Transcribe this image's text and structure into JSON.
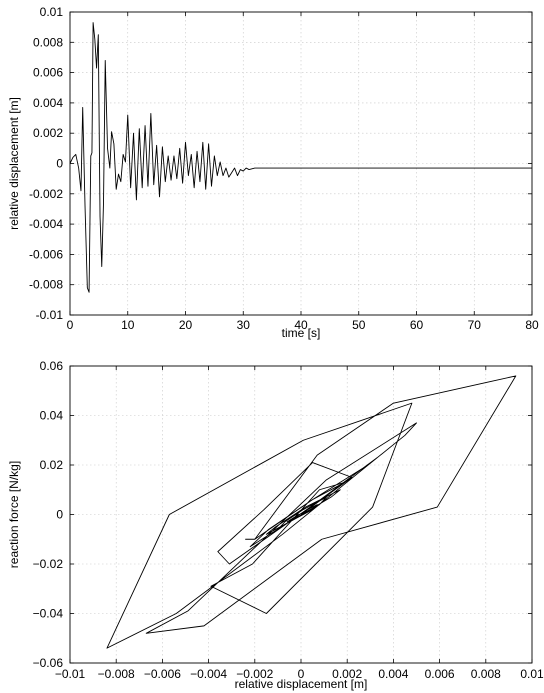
{
  "chart_data": [
    {
      "type": "line",
      "title": "",
      "xlabel": "time [s]",
      "ylabel": "relative displacement [m]",
      "xlim": [
        0,
        80
      ],
      "ylim": [
        -0.01,
        0.01
      ],
      "xticks": [
        0,
        10,
        20,
        30,
        40,
        50,
        60,
        70,
        80
      ],
      "xtick_labels": [
        "0",
        "10",
        "20",
        "30",
        "40",
        "50",
        "60",
        "70",
        "80"
      ],
      "yticks": [
        -0.01,
        -0.008,
        -0.006,
        -0.004,
        -0.002,
        0,
        0.002,
        0.004,
        0.006,
        0.008,
        0.01
      ],
      "ytick_labels": [
        "-0.01",
        "-0.008",
        "-0.006",
        "-0.004",
        "-0.002",
        "0",
        "0.002",
        "0.004",
        "0.006",
        "0.008",
        "0.01"
      ],
      "grid": true,
      "series": [
        {
          "x": [
            0,
            0.5,
            1.0,
            1.5,
            1.9,
            2.2,
            2.6,
            3.0,
            3.3,
            3.6,
            3.8,
            4.0,
            4.3,
            4.6,
            4.9,
            5.2,
            5.5,
            5.8,
            6.1,
            6.5,
            6.9,
            7.2,
            7.6,
            8.0,
            8.4,
            8.8,
            9.2,
            9.6,
            10.0,
            10.5,
            11.0,
            11.5,
            12.0,
            12.5,
            13.0,
            13.5,
            14.0,
            14.5,
            15.0,
            15.5,
            16.0,
            16.5,
            17.0,
            17.5,
            18.0,
            18.5,
            19.0,
            19.5,
            20.0,
            20.5,
            21.0,
            21.5,
            22.0,
            22.5,
            23.0,
            23.5,
            24.0,
            24.5,
            25.0,
            25.5,
            26.0,
            26.5,
            27.0,
            27.5,
            28.0,
            28.5,
            29.0,
            29.5,
            30.0,
            30.5,
            31.0,
            32.0,
            40.0,
            60.0,
            80.0
          ],
          "y": [
            0.0,
            0.0004,
            0.0006,
            -0.0003,
            -0.0018,
            0.0037,
            -0.0028,
            -0.0082,
            -0.0085,
            0.0005,
            0.0007,
            0.0093,
            0.0082,
            0.0063,
            0.0085,
            -0.0035,
            -0.0068,
            -0.0026,
            0.0068,
            0.001,
            -0.0003,
            0.0021,
            0.0013,
            -0.0017,
            -0.0007,
            -0.0012,
            0.0006,
            0.0001,
            0.0032,
            -0.0016,
            0.002,
            -0.0024,
            0.0023,
            -0.0016,
            0.0025,
            -0.0015,
            0.0033,
            -0.0014,
            0.0012,
            -0.0022,
            0.0011,
            -0.0012,
            0.0005,
            -0.0011,
            0.0005,
            -0.001,
            0.001,
            -0.0013,
            0.0014,
            -0.0008,
            0.0006,
            -0.0016,
            0.0008,
            -0.0012,
            0.0014,
            -0.0017,
            0.0013,
            -0.0015,
            0.0005,
            -0.0008,
            0.0001,
            -0.0008,
            -0.0003,
            -0.0009,
            -0.0006,
            -0.0003,
            -0.0008,
            -0.0004,
            -0.0005,
            -0.0003,
            -0.0004,
            -0.0003,
            -0.0003,
            -0.0003,
            -0.0003
          ]
        }
      ]
    },
    {
      "type": "line",
      "title": "",
      "xlabel": "relative displacement [m]",
      "ylabel": "reaction force [N/kg]",
      "xlim": [
        -0.01,
        0.01
      ],
      "ylim": [
        -0.06,
        0.06
      ],
      "xticks": [
        -0.01,
        -0.008,
        -0.006,
        -0.004,
        -0.002,
        0,
        0.002,
        0.004,
        0.006,
        0.008,
        0.01
      ],
      "xtick_labels": [
        "−0.01",
        "−0.008",
        "−0.006",
        "−0.004",
        "−0.002",
        "0",
        "0.002",
        "0.004",
        "0.006",
        "0.008",
        "0.01"
      ],
      "yticks": [
        -0.06,
        -0.04,
        -0.02,
        0,
        0.02,
        0.04,
        0.06
      ],
      "ytick_labels": [
        "−0.06",
        "−0.04",
        "−0.02",
        "0",
        "0.02",
        "0.04",
        "0.06"
      ],
      "grid": true,
      "series": [
        {
          "x": [
            0.0,
            0.0022,
            0.0005,
            -0.0016,
            -0.0036,
            -0.0031,
            0.0004,
            0.0033,
            0.0029,
            0.0005,
            -0.002,
            -0.0024,
            -0.002,
            0.0007,
            0.004,
            0.0093,
            0.0059,
            0.0009,
            -0.0042,
            -0.0067,
            -0.0049,
            0.0011,
            0.005,
            0.0045,
            -0.0008,
            -0.0054,
            -0.0084,
            -0.0057,
            0.0001,
            0.0048,
            0.0031,
            -0.0015,
            -0.0039,
            -0.0021,
            0.0008,
            0.0019,
            0.0005,
            -0.0014,
            -0.0022,
            -0.0005,
            0.0013,
            0.0017,
            0.0002,
            -0.0011,
            -0.0015,
            -0.0003,
            0.0008,
            0.0011,
            0.0001,
            -0.0007,
            -0.0009,
            -0.0001,
            0.0005,
            0.0007,
            0.0001,
            -0.0004,
            -0.0006,
            -0.0001,
            0.0003,
            0.0004,
            0.0
          ],
          "y": [
            0.0,
            0.015,
            0.021,
            0.002,
            -0.015,
            -0.02,
            0.003,
            0.023,
            0.02,
            0.006,
            -0.01,
            -0.01,
            -0.01,
            0.024,
            0.045,
            0.056,
            0.003,
            -0.01,
            -0.045,
            -0.048,
            -0.039,
            0.014,
            0.037,
            0.032,
            -0.008,
            -0.04,
            -0.054,
            0.0,
            0.03,
            0.045,
            0.003,
            -0.04,
            -0.029,
            -0.02,
            0.01,
            0.013,
            0.006,
            -0.006,
            -0.013,
            -0.003,
            0.007,
            0.01,
            0.003,
            -0.005,
            -0.008,
            -0.002,
            0.004,
            0.007,
            0.002,
            -0.003,
            -0.005,
            -0.001,
            0.002,
            0.004,
            0.001,
            -0.002,
            -0.003,
            0.0,
            0.001,
            0.002,
            0.0
          ]
        }
      ]
    }
  ]
}
